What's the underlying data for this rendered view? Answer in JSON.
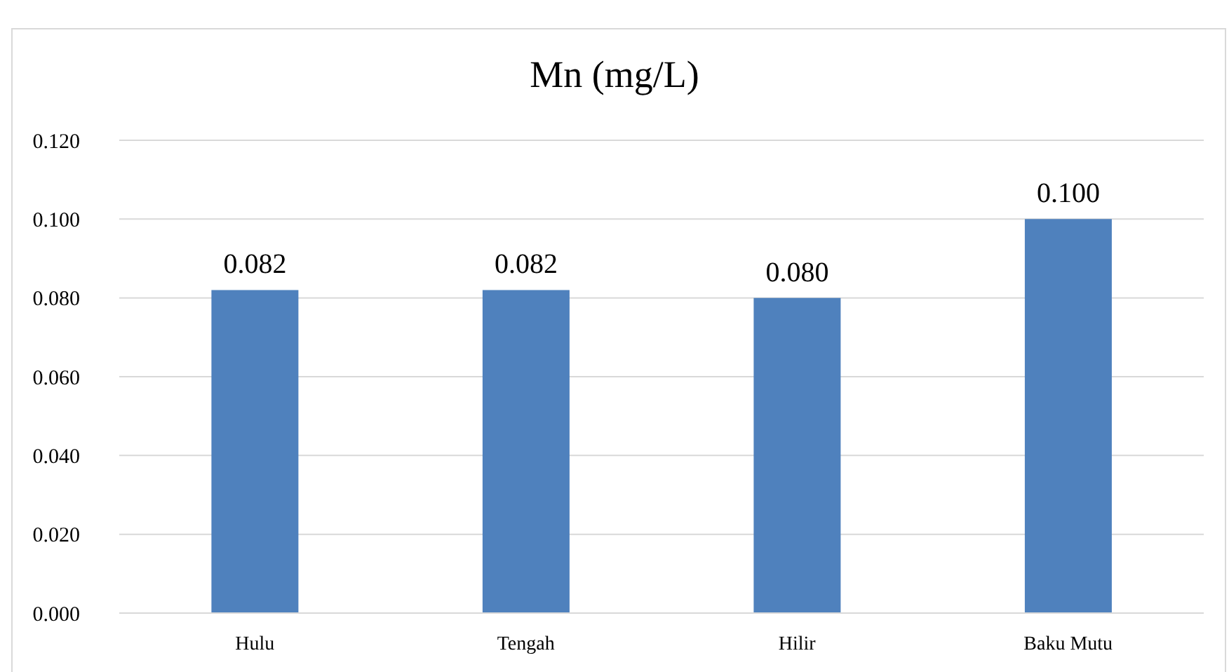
{
  "chart_data": {
    "type": "bar",
    "title": "Mn (mg/L)",
    "categories": [
      "Hulu",
      "Tengah",
      "Hilir",
      "Baku Mutu"
    ],
    "values": [
      0.082,
      0.082,
      0.08,
      0.1
    ],
    "color": "#4f81bd",
    "ylim": [
      0,
      0.12
    ],
    "yticks": [
      {
        "value": 0,
        "label": "0.000"
      },
      {
        "value": 0.02,
        "label": "0.020"
      },
      {
        "value": 0.04,
        "label": "0.040"
      },
      {
        "value": 0.06,
        "label": "0.060"
      },
      {
        "value": 0.08,
        "label": "0.080"
      },
      {
        "value": 0.1,
        "label": "0.100"
      },
      {
        "value": 0.12,
        "label": "0.120"
      }
    ],
    "value_labels": [
      "0.082",
      "0.082",
      "0.080",
      "0.100"
    ],
    "grid": "y",
    "legend": false
  }
}
